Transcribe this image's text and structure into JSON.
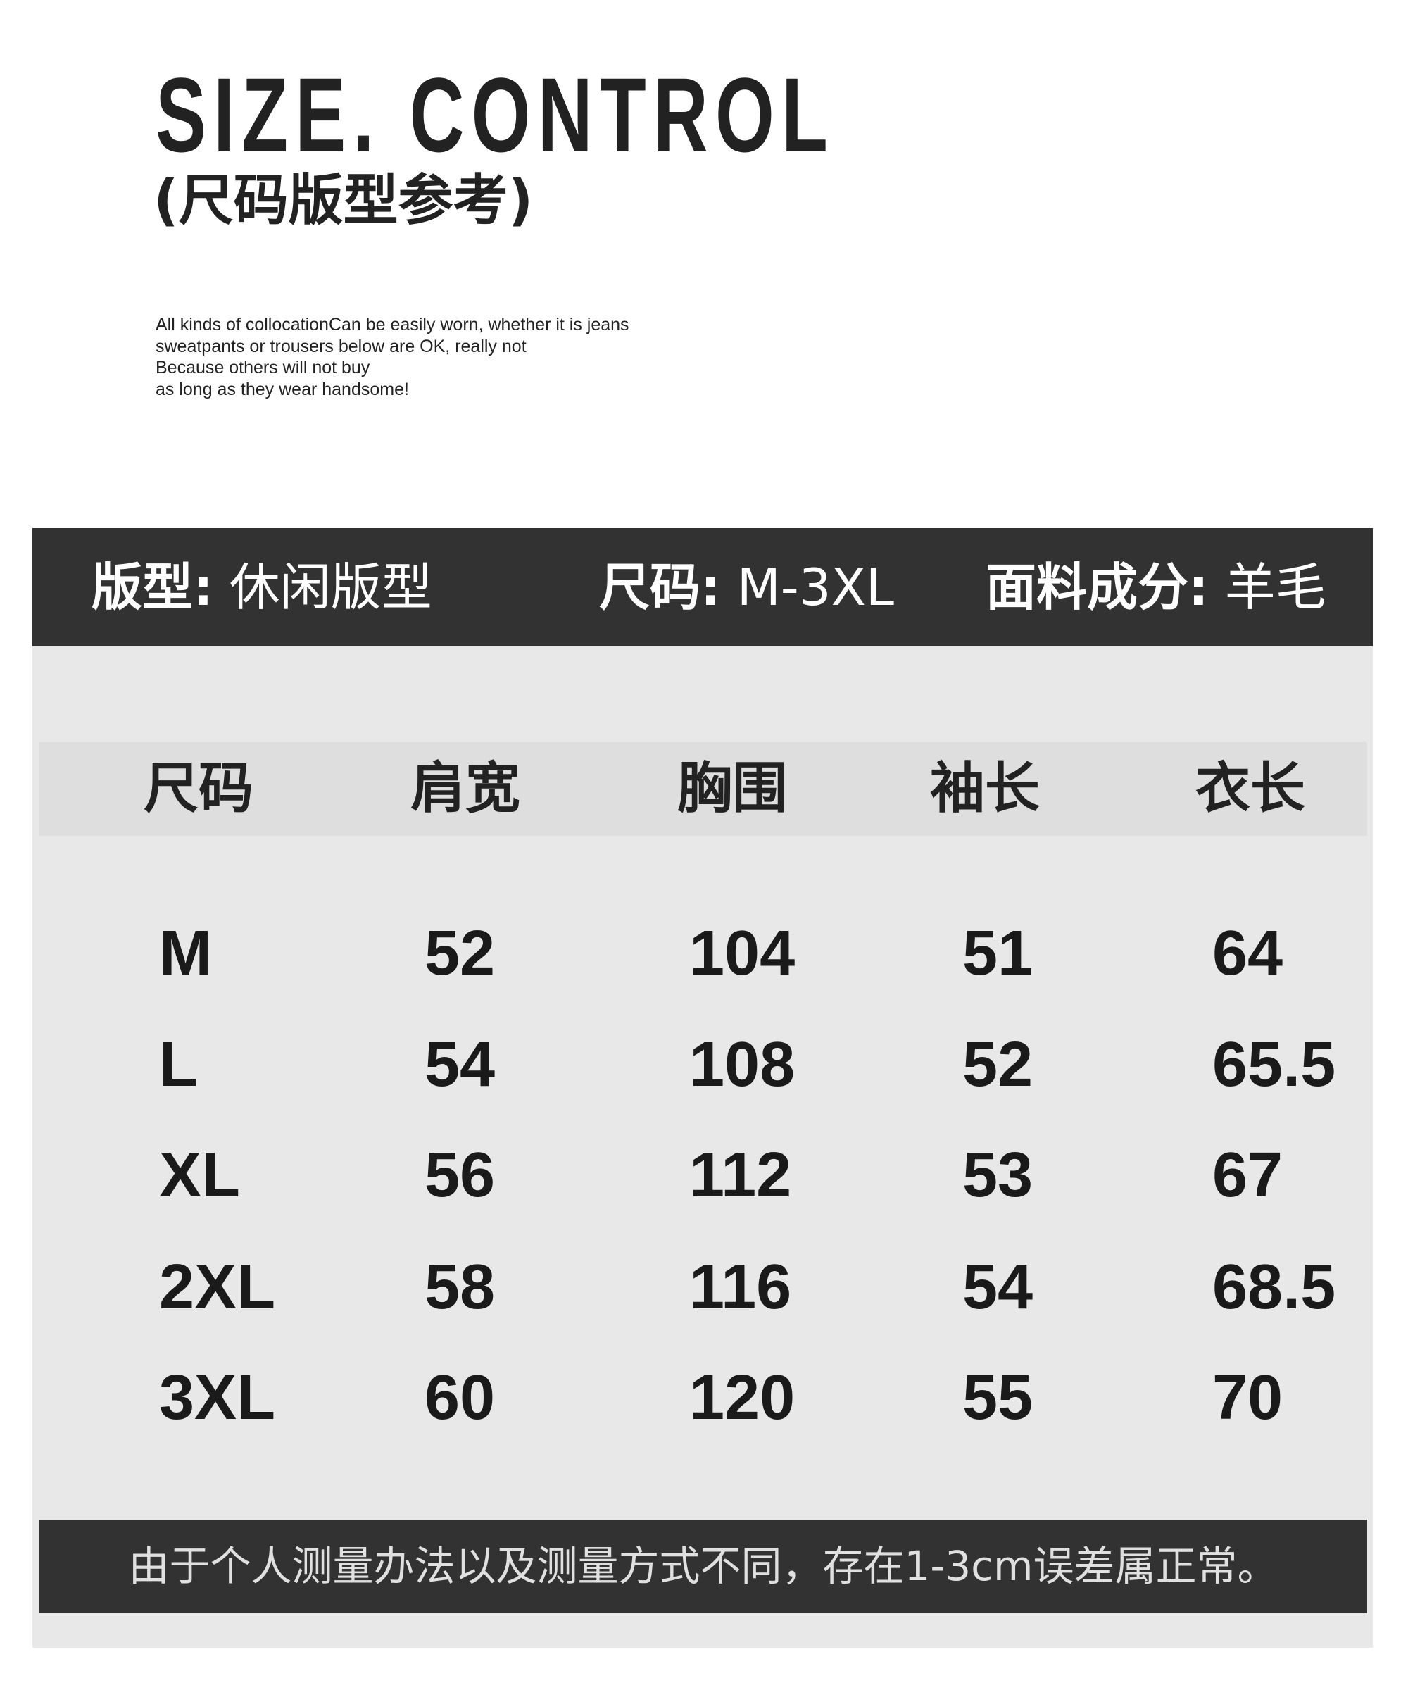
{
  "heading": {
    "title": "SIZE. CONTROL",
    "subtitle": "(尺码版型参考)"
  },
  "description": [
    "All kinds of collocationCan be easily worn, whether it is jeans",
    "sweatpants or trousers below are OK, really not",
    "Because others will not buy",
    "as long as they wear handsome!"
  ],
  "info_bar": [
    {
      "label": "版型:",
      "value": "休闲版型"
    },
    {
      "label": "尺码:",
      "value": "M-3XL"
    },
    {
      "label": "面料成分:",
      "value": "羊毛"
    }
  ],
  "size_table": {
    "headers": [
      "尺码",
      "肩宽",
      "胸围",
      "袖长",
      "衣长"
    ],
    "rows": [
      [
        "M",
        "52",
        "104",
        "51",
        "64"
      ],
      [
        "L",
        "54",
        "108",
        "52",
        "65.5"
      ],
      [
        "XL",
        "56",
        "112",
        "53",
        "67"
      ],
      [
        "2XL",
        "58",
        "116",
        "54",
        "68.5"
      ],
      [
        "3XL",
        "60",
        "120",
        "55",
        "70"
      ]
    ]
  },
  "footer_note": "由于个人测量办法以及测量方式不同，存在1-3cm误差属正常。",
  "colors": {
    "dark_band": "#323232",
    "panel": "#e8e8e8",
    "header_row": "#dedede"
  }
}
